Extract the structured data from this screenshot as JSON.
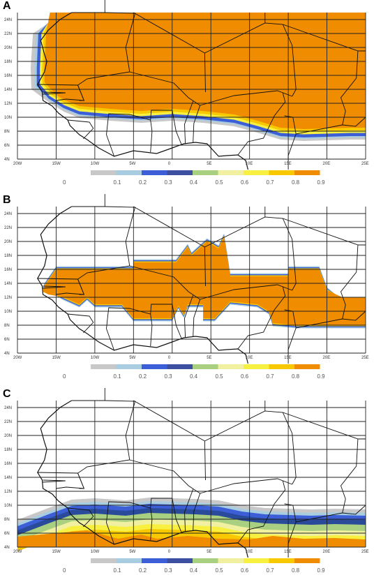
{
  "panels": [
    {
      "id": "A",
      "label": "A"
    },
    {
      "id": "B",
      "label": "B"
    },
    {
      "id": "C",
      "label": "C"
    }
  ],
  "axes": {
    "lat_labels": [
      "24N",
      "22N",
      "20N",
      "18N",
      "16N",
      "14N",
      "12N",
      "10N",
      "8N",
      "6N",
      "4N"
    ],
    "lon_labels": [
      "20W",
      "15W",
      "10W",
      "5W",
      "0",
      "5E",
      "10E",
      "15E",
      "20E",
      "25E"
    ]
  },
  "colorbar": {
    "ticks": [
      "0",
      "0.1",
      "0.2",
      "0.3",
      "0.4",
      "0.5",
      "0.6",
      "0.7",
      "0.8",
      "0.9"
    ],
    "colors": [
      "#c8c8c8",
      "#a8cce0",
      "#3c5fd8",
      "#3c4fa0",
      "#a8d080",
      "#f0f0a0",
      "#f8f040",
      "#f8c800",
      "#f08c00"
    ]
  },
  "fill_colors": {
    "orange": "#f08c00",
    "amber": "#f8c800",
    "yellow": "#f8f040",
    "pale_yellow": "#f0f0a0",
    "green": "#a8d080",
    "blue": "#3c5fd8",
    "light_blue": "#a8cce0",
    "grey": "#c8c8c8"
  }
}
